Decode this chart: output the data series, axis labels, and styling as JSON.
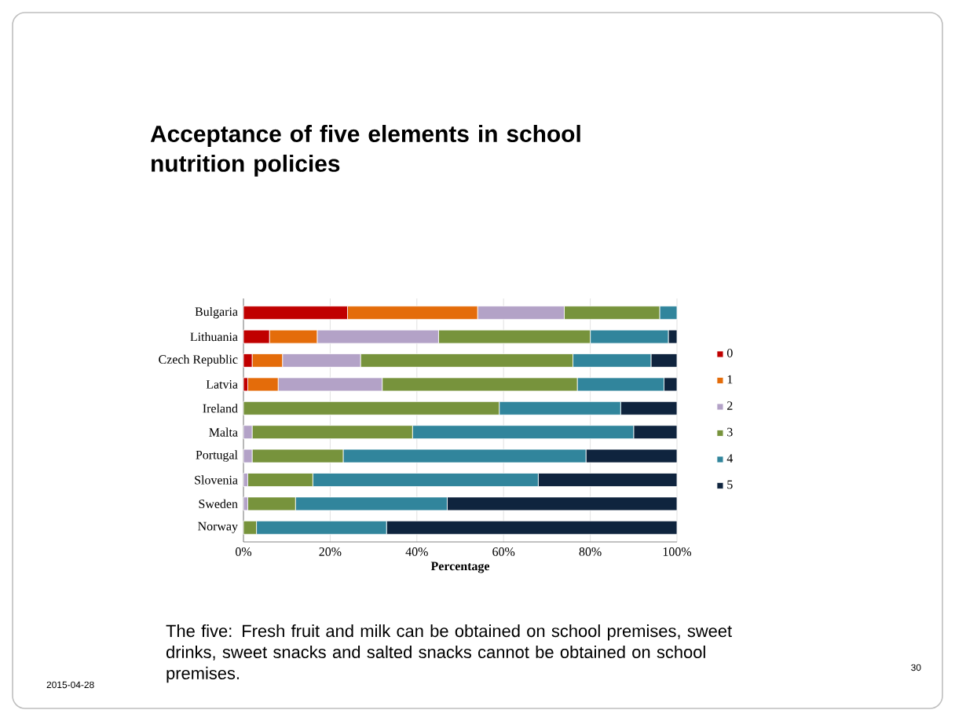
{
  "chart_data": {
    "type": "bar",
    "orientation": "horizontal",
    "stacked": true,
    "title": "Acceptance of five elements in school nutrition policies",
    "xlabel": "Percentage",
    "categories": [
      "Bulgaria",
      "Lithuania",
      "Czech Republic",
      "Latvia",
      "Ireland",
      "Malta",
      "Portugal",
      "Slovenia",
      "Sweden",
      "Norway"
    ],
    "series": [
      {
        "name": "0",
        "color": "#c00000",
        "values": [
          24,
          6,
          2,
          1,
          0,
          0,
          0,
          0,
          0,
          0
        ]
      },
      {
        "name": "1",
        "color": "#e46c0a",
        "values": [
          30,
          11,
          7,
          7,
          0,
          0,
          0,
          0,
          0,
          0
        ]
      },
      {
        "name": "2",
        "color": "#b3a2c7",
        "values": [
          20,
          28,
          18,
          24,
          0,
          2,
          2,
          1,
          1,
          0
        ]
      },
      {
        "name": "3",
        "color": "#77933c",
        "values": [
          22,
          35,
          49,
          45,
          59,
          37,
          21,
          15,
          11,
          3
        ]
      },
      {
        "name": "4",
        "color": "#31859c",
        "values": [
          4,
          18,
          18,
          20,
          28,
          51,
          56,
          52,
          35,
          30
        ]
      },
      {
        "name": "5",
        "color": "#0f243e",
        "values": [
          0,
          2,
          6,
          3,
          13,
          10,
          21,
          32,
          53,
          67
        ]
      }
    ],
    "xlim": [
      0,
      100
    ],
    "xticks": [
      {
        "value": 0,
        "label": "0%"
      },
      {
        "value": 20,
        "label": "20%"
      },
      {
        "value": 40,
        "label": "40%"
      },
      {
        "value": 60,
        "label": "60%"
      },
      {
        "value": 80,
        "label": "80%"
      },
      {
        "value": 100,
        "label": "100%"
      }
    ],
    "grid": "x",
    "legend": "right",
    "annotations": [
      "The five: Fresh fruit and milk can be obtained on school premises, sweet drinks, sweet snacks and salted snacks cannot be obtained on school premises.",
      "2015-04-28",
      "30"
    ]
  }
}
